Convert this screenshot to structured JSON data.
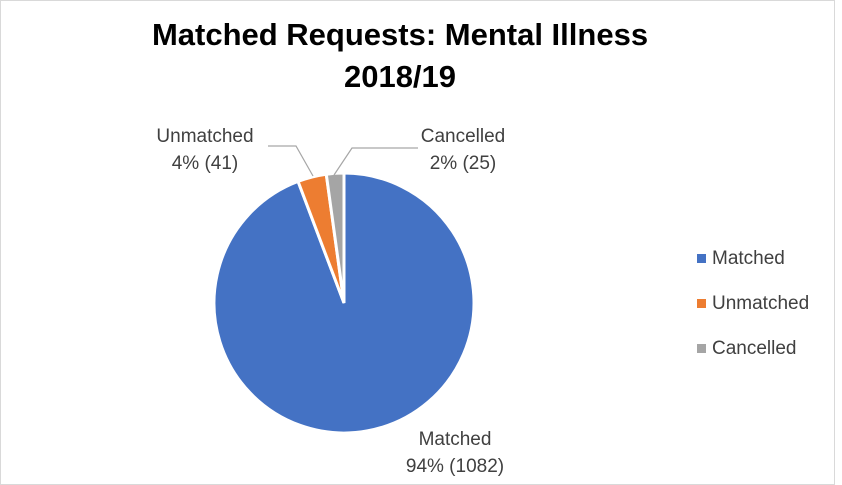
{
  "chart_data": {
    "type": "pie",
    "title": "Matched Requests: Mental Illness 2018/19",
    "categories": [
      "Matched",
      "Unmatched",
      "Cancelled"
    ],
    "values": [
      1082,
      41,
      25
    ],
    "value_labels": [
      "94% (1082)",
      "4% (41)",
      "2% (25)"
    ],
    "colors": [
      "#4472c4",
      "#ed7d31",
      "#a5a5a5"
    ],
    "legend": "right"
  }
}
